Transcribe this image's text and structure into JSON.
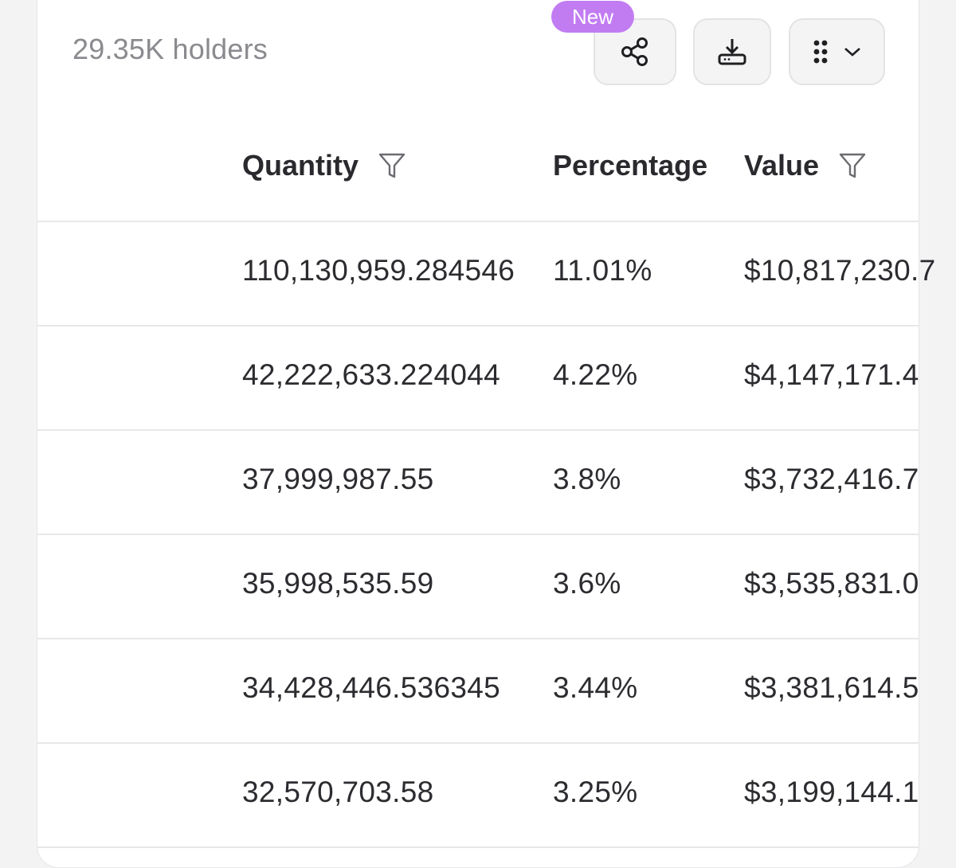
{
  "header": {
    "holders_text": "29.35K holders",
    "new_badge": "New"
  },
  "toolbar": {
    "share_icon": "share-icon",
    "download_icon": "download-icon",
    "columns_icon": "grid-dots-icon",
    "chevron_icon": "chevron-down-icon",
    "badge_color": "#c27cf2"
  },
  "table": {
    "columns": [
      "Quantity",
      "Percentage",
      "Value"
    ],
    "rows": [
      {
        "quantity": "110,130,959.284546",
        "percentage": "11.01%",
        "value": "$10,817,230.7"
      },
      {
        "quantity": "42,222,633.224044",
        "percentage": "4.22%",
        "value": "$4,147,171.4"
      },
      {
        "quantity": "37,999,987.55",
        "percentage": "3.8%",
        "value": "$3,732,416.7"
      },
      {
        "quantity": "35,998,535.59",
        "percentage": "3.6%",
        "value": "$3,535,831.0"
      },
      {
        "quantity": "34,428,446.536345",
        "percentage": "3.44%",
        "value": "$3,381,614.5"
      },
      {
        "quantity": "32,570,703.58",
        "percentage": "3.25%",
        "value": "$3,199,144.1"
      }
    ]
  }
}
